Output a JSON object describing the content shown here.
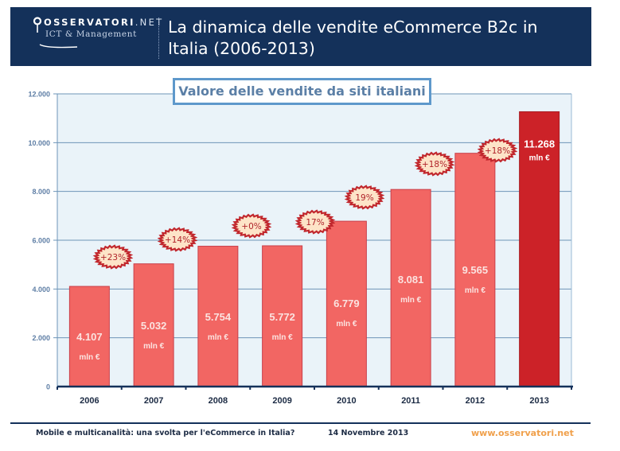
{
  "header": {
    "logo_main": "OSSERVATORI",
    "logo_net": ".NET",
    "logo_sub": "ICT & Management",
    "title_line1": "La dinamica delle vendite eCommerce B2c in",
    "title_line2": "Italia (2006-2013)"
  },
  "colors": {
    "header_bg": "#14315a",
    "bar": "#f26663",
    "bar_highlight": "#cc2228",
    "plot_bg": "#eaf3f9",
    "gridline": "#6e95b8",
    "badge_fill": "#fde4c8",
    "badge_border": "#c1272d",
    "url": "#f0a04b"
  },
  "chart_data": {
    "type": "bar",
    "title": "Valore delle vendite da siti italiani",
    "xlabel": "",
    "ylabel": "",
    "unit": "mln €",
    "ylim": [
      0,
      12000
    ],
    "yticks": [
      0,
      2000,
      4000,
      6000,
      8000,
      10000,
      12000
    ],
    "ytick_labels": [
      "0",
      "2.000",
      "4.000",
      "6.000",
      "8.000",
      "10.000",
      "12.000"
    ],
    "grid": true,
    "categories": [
      "2006",
      "2007",
      "2008",
      "2009",
      "2010",
      "2011",
      "2012",
      "2013"
    ],
    "values": [
      4107,
      5032,
      5754,
      5772,
      6779,
      8081,
      9565,
      11268
    ],
    "value_labels": [
      "4.107",
      "5.032",
      "5.754",
      "5.772",
      "6.779",
      "8.081",
      "9.565",
      "11.268"
    ],
    "highlight_index": 7,
    "growth_badges": [
      {
        "between": "2006-2007",
        "label": "+23%"
      },
      {
        "between": "2007-2008",
        "label": "+14%"
      },
      {
        "between": "2008-2009",
        "label": "+0%"
      },
      {
        "between": "2009-2010",
        "label": "17%"
      },
      {
        "between": "2010-2011",
        "label": "19%"
      },
      {
        "between": "2011-2012",
        "label": "+18%"
      },
      {
        "between": "2012-2013",
        "label": "+18%"
      }
    ]
  },
  "footer": {
    "left": "Mobile e multicanalità: una svolta per l'eCommerce in Italia?",
    "date": "14 Novembre 2013",
    "url": "www.osservatori.net"
  }
}
